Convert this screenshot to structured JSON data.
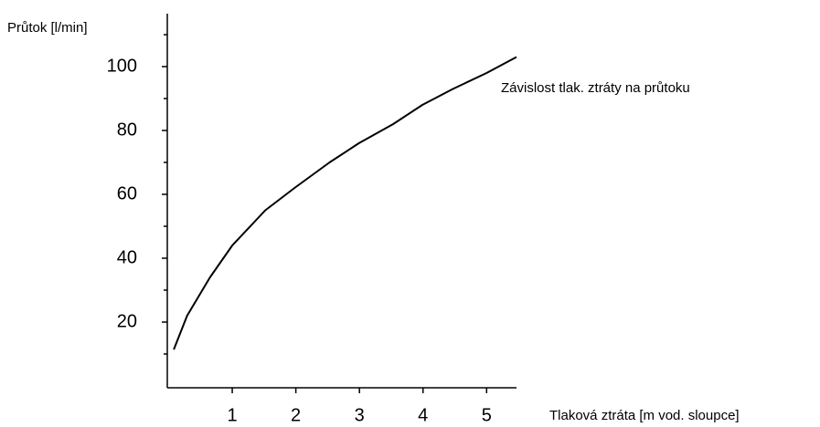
{
  "chart_data": {
    "type": "line",
    "ylabel": "Průtok [l/min]",
    "xlabel": "Tlaková ztráta [m vod. sloupce]",
    "annotation": "Závislost tlak. ztráty na průtoku",
    "x": [
      0.08,
      0.29,
      0.65,
      1.0,
      1.52,
      1.98,
      2.53,
      2.99,
      3.53,
      3.99,
      4.47,
      5.0,
      5.47
    ],
    "series": [
      {
        "color": "#000000",
        "values": [
          11.4,
          22,
          34,
          44,
          55,
          62,
          70,
          76,
          82,
          88,
          93,
          98,
          103
        ]
      }
    ],
    "xlim": [
      0,
      5.47
    ],
    "xticks": [
      1,
      2,
      3,
      4,
      5
    ],
    "ylim": [
      0,
      117
    ],
    "yticks": [
      20,
      40,
      60,
      80,
      100
    ],
    "yminorticks": [
      10,
      30,
      50,
      70,
      90,
      110
    ],
    "grid": false
  }
}
